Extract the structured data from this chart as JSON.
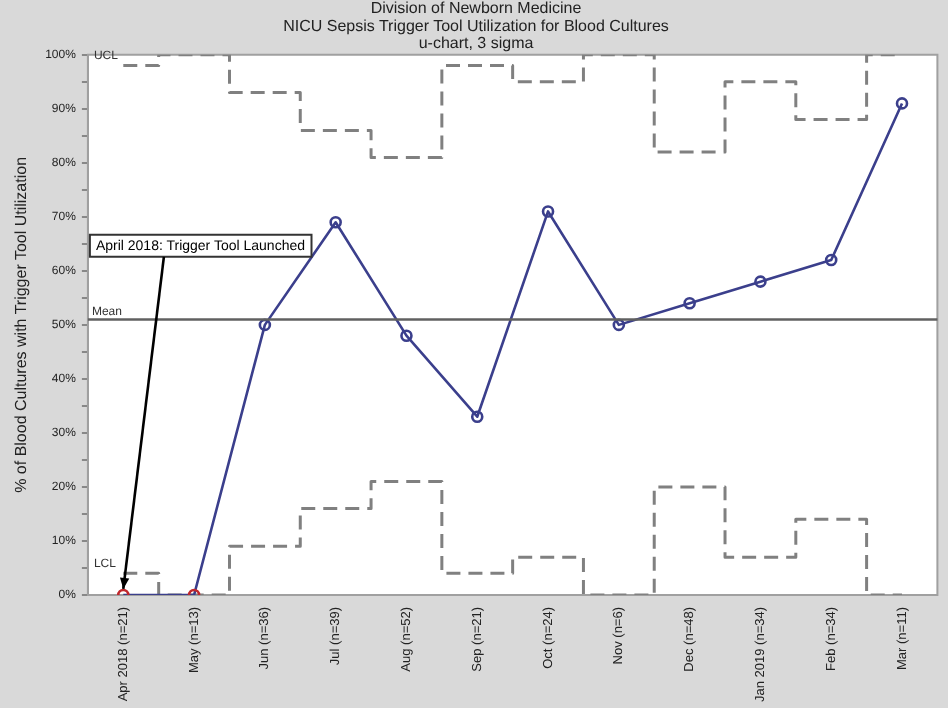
{
  "chart_data": {
    "type": "line",
    "title": "Division of Newborn Medicine",
    "subtitle": "NICU Sepsis Trigger Tool Utilization for Blood Cultures\nu-chart, 3 sigma",
    "ylabel": "% of Blood Cultures with Trigger Tool Utilization",
    "categories": [
      "Apr 2018 (n=21)",
      "May (n=13)",
      "Jun (n=36)",
      "Jul (n=39)",
      "Aug (n=52)",
      "Sep (n=21)",
      "Oct (n=24)",
      "Nov (n=6)",
      "Dec (n=48)",
      "Jan 2019 (n=34)",
      "Feb (n=34)",
      "Mar (n=11)"
    ],
    "series": [
      {
        "color": "#3b3f8c",
        "colors": [
          "#c0282d",
          "#c0282d",
          "#3b3f8c",
          "#3b3f8c",
          "#3b3f8c",
          "#3b3f8c",
          "#3b3f8c",
          "#3b3f8c",
          "#3b3f8c",
          "#3b3f8c",
          "#3b3f8c",
          "#3b3f8c"
        ],
        "values": [
          0,
          0,
          50,
          69,
          48,
          33,
          71,
          50,
          54,
          58,
          62,
          91
        ]
      },
      {
        "name": "UCL",
        "type": "step",
        "color": "#808080",
        "line_style": "dashed",
        "marker": "none",
        "values": [
          98,
          100,
          93,
          86,
          81,
          98,
          95,
          100,
          82,
          95,
          88,
          100
        ]
      },
      {
        "name": "LCL",
        "type": "step",
        "color": "#808080",
        "line_style": "dashed",
        "marker": "none",
        "values": [
          4,
          0,
          9,
          16,
          21,
          4,
          7,
          0,
          20,
          7,
          14,
          0
        ]
      }
    ],
    "ref_lines": [
      {
        "axis": "y",
        "value": 51,
        "label": "Mean",
        "color": "#606060"
      }
    ],
    "annotations": [
      {
        "text": "April 2018: Trigger Tool Launched",
        "x": "Apr 2018 (n=21)",
        "y": 0
      }
    ],
    "ylim": [
      0,
      100
    ],
    "yticks": [
      {
        "value": 0,
        "label": "0%"
      },
      {
        "value": 5,
        "label": null
      },
      {
        "value": 10,
        "label": "10%"
      },
      {
        "value": 15,
        "label": null
      },
      {
        "value": 20,
        "label": "20%"
      },
      {
        "value": 25,
        "label": null
      },
      {
        "value": 30,
        "label": "30%"
      },
      {
        "value": 35,
        "label": null
      },
      {
        "value": 40,
        "label": "40%"
      },
      {
        "value": 45,
        "label": null
      },
      {
        "value": 50,
        "label": "50%"
      },
      {
        "value": 55,
        "label": null
      },
      {
        "value": 60,
        "label": "60%"
      },
      {
        "value": 65,
        "label": null
      },
      {
        "value": 70,
        "label": "70%"
      },
      {
        "value": 75,
        "label": null
      },
      {
        "value": 80,
        "label": "80%"
      },
      {
        "value": 85,
        "label": null
      },
      {
        "value": 90,
        "label": "90%"
      },
      {
        "value": 95,
        "label": null
      },
      {
        "value": 100,
        "label": "100%"
      }
    ],
    "grid": false,
    "legend": false,
    "marker": "circle",
    "line_style": "solid"
  }
}
